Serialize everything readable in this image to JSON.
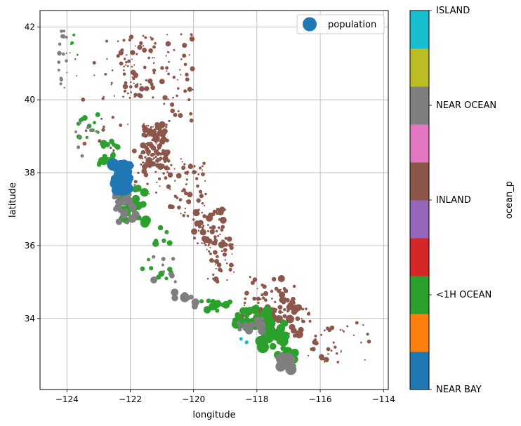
{
  "chart_data": {
    "type": "scatter",
    "title": "",
    "xlabel": "longitude",
    "ylabel": "latitude",
    "xlim": [
      -124.85,
      -113.85
    ],
    "ylim": [
      32.05,
      42.45
    ],
    "xticks": [
      -124,
      -122,
      -120,
      -118,
      -116,
      -114
    ],
    "xtick_labels": [
      "−124",
      "−122",
      "−120",
      "−118",
      "−116",
      "−114"
    ],
    "yticks": [
      34,
      36,
      38,
      40,
      42
    ],
    "ytick_labels": [
      "34",
      "36",
      "38",
      "40",
      "42"
    ],
    "grid": true,
    "legend": {
      "position": "top-right",
      "label": "population",
      "color": "#1f77b4"
    },
    "colorbar": {
      "label": "ocean_p",
      "bands": [
        "#1f77b4",
        "#ff7f0e",
        "#2ca02c",
        "#d62728",
        "#9467bd",
        "#8c564b",
        "#e377c2",
        "#7f7f7f",
        "#bcbd22",
        "#17becf"
      ],
      "tick_labels": [
        "NEAR BAY",
        "<1H OCEAN",
        "INLAND",
        "NEAR OCEAN",
        "ISLAND"
      ],
      "tick_values": [
        0,
        1,
        2,
        3,
        4
      ],
      "range": [
        0,
        4
      ]
    },
    "category_colors": {
      "NEAR BAY": "#1f77b4",
      "<1H OCEAN": "#2ca02c",
      "INLAND": "#8c564b",
      "NEAR OCEAN": "#7f7f7f",
      "ISLAND": "#17becf"
    },
    "series": [
      {
        "name": "INLAND",
        "clusters": [
          {
            "x": [
              -121.6,
              -120.8
            ],
            "y": [
              38.1,
              39.4
            ],
            "count": 120,
            "size": [
              1,
              5
            ]
          },
          {
            "x": [
              -122.3,
              -121.2
            ],
            "y": [
              40.0,
              41.8
            ],
            "count": 70,
            "size": [
              1,
              4
            ]
          },
          {
            "x": [
              -121.0,
              -120.0
            ],
            "y": [
              39.4,
              41.9
            ],
            "count": 45,
            "size": [
              1,
              4
            ]
          },
          {
            "x": [
              -120.8,
              -119.6
            ],
            "y": [
              36.8,
              38.5
            ],
            "count": 60,
            "size": [
              1,
              4
            ]
          },
          {
            "x": [
              -120.0,
              -119.0
            ],
            "y": [
              36.0,
              37.0
            ],
            "count": 70,
            "size": [
              1,
              5
            ]
          },
          {
            "x": [
              -119.6,
              -118.7
            ],
            "y": [
              35.0,
              36.2
            ],
            "count": 55,
            "size": [
              1,
              4
            ]
          },
          {
            "x": [
              -118.5,
              -117.0
            ],
            "y": [
              34.0,
              35.2
            ],
            "count": 45,
            "size": [
              1,
              5
            ]
          },
          {
            "x": [
              -117.5,
              -116.3
            ],
            "y": [
              33.5,
              34.3
            ],
            "count": 40,
            "size": [
              1,
              6
            ]
          },
          {
            "x": [
              -116.5,
              -115.3
            ],
            "y": [
              32.8,
              33.8
            ],
            "count": 25,
            "size": [
              1,
              4
            ]
          },
          {
            "x": [
              -115.9,
              -114.4
            ],
            "y": [
              32.7,
              34.1
            ],
            "count": 15,
            "size": [
              1,
              3
            ]
          },
          {
            "x": [
              -123.5,
              -121.8
            ],
            "y": [
              38.5,
              41.8
            ],
            "count": 30,
            "size": [
              1,
              3
            ]
          },
          {
            "x": [
              -122.0,
              -120.5
            ],
            "y": [
              37.4,
              38.6
            ],
            "count": 40,
            "size": [
              1,
              4
            ]
          },
          {
            "x": [
              -117.8,
              -116.8
            ],
            "y": [
              34.2,
              34.9
            ],
            "count": 25,
            "size": [
              2,
              5
            ]
          }
        ]
      },
      {
        "name": "<1H OCEAN",
        "clusters": [
          {
            "x": [
              -124.1,
              -123.6
            ],
            "y": [
              40.3,
              41.9
            ],
            "count": 10,
            "size": [
              1,
              3
            ]
          },
          {
            "x": [
              -123.8,
              -123.0
            ],
            "y": [
              38.9,
              39.7
            ],
            "count": 12,
            "size": [
              2,
              4
            ]
          },
          {
            "x": [
              -123.0,
              -122.3
            ],
            "y": [
              38.2,
              38.9
            ],
            "count": 20,
            "size": [
              3,
              6
            ]
          },
          {
            "x": [
              -122.3,
              -121.5
            ],
            "y": [
              36.6,
              37.6
            ],
            "count": 30,
            "size": [
              3,
              7
            ]
          },
          {
            "x": [
              -121.7,
              -120.7
            ],
            "y": [
              35.0,
              36.6
            ],
            "count": 14,
            "size": [
              2,
              5
            ]
          },
          {
            "x": [
              -119.8,
              -118.8
            ],
            "y": [
              34.2,
              34.5
            ],
            "count": 14,
            "size": [
              3,
              6
            ]
          },
          {
            "x": [
              -118.7,
              -117.6
            ],
            "y": [
              33.8,
              34.3
            ],
            "count": 35,
            "size": [
              4,
              8
            ]
          },
          {
            "x": [
              -117.9,
              -117.1
            ],
            "y": [
              33.2,
              34.0
            ],
            "count": 30,
            "size": [
              4,
              9
            ]
          },
          {
            "x": [
              -117.4,
              -116.8
            ],
            "y": [
              32.7,
              33.3
            ],
            "count": 15,
            "size": [
              3,
              7
            ]
          }
        ]
      },
      {
        "name": "NEAR OCEAN",
        "clusters": [
          {
            "x": [
              -124.3,
              -124.0
            ],
            "y": [
              40.4,
              41.9
            ],
            "count": 14,
            "size": [
              2,
              4
            ]
          },
          {
            "x": [
              -123.8,
              -123.0
            ],
            "y": [
              38.3,
              39.4
            ],
            "count": 8,
            "size": [
              2,
              3
            ]
          },
          {
            "x": [
              -122.6,
              -121.8
            ],
            "y": [
              36.6,
              37.7
            ],
            "count": 25,
            "size": [
              3,
              6
            ]
          },
          {
            "x": [
              -121.3,
              -120.5
            ],
            "y": [
              34.9,
              35.8
            ],
            "count": 12,
            "size": [
              2,
              5
            ]
          },
          {
            "x": [
              -120.7,
              -119.7
            ],
            "y": [
              34.3,
              34.8
            ],
            "count": 8,
            "size": [
              3,
              7
            ]
          },
          {
            "x": [
              -118.6,
              -117.7
            ],
            "y": [
              33.6,
              34.0
            ],
            "count": 14,
            "size": [
              3,
              6
            ]
          },
          {
            "x": [
              -117.3,
              -116.9
            ],
            "y": [
              32.6,
              33.0
            ],
            "count": 20,
            "size": [
              4,
              8
            ]
          }
        ]
      },
      {
        "name": "NEAR BAY",
        "clusters": [
          {
            "x": [
              -122.55,
              -122.0
            ],
            "y": [
              37.5,
              38.3
            ],
            "count": 40,
            "size": [
              4,
              9
            ]
          }
        ]
      },
      {
        "name": "ISLAND",
        "points": [
          {
            "x": -118.5,
            "y": 33.44
          },
          {
            "x": -118.33,
            "y": 33.34
          },
          {
            "x": -118.32,
            "y": 33.35
          }
        ]
      }
    ]
  }
}
